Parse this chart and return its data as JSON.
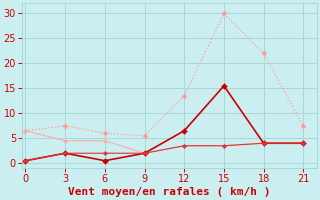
{
  "background_color": "#cbeef0",
  "grid_color": "#a8d8d8",
  "xlabel": "Vent moyen/en rafales ( km/h )",
  "xlabel_color": "#cc0000",
  "xlabel_fontsize": 8,
  "xticks": [
    0,
    3,
    6,
    9,
    12,
    15,
    18,
    21
  ],
  "yticks": [
    0,
    5,
    10,
    15,
    20,
    25,
    30
  ],
  "ylim": [
    -1,
    32
  ],
  "xlim": [
    -0.3,
    22
  ],
  "tick_color": "#cc0000",
  "tick_fontsize": 7,
  "lines": [
    {
      "label": "gust_light_dotted",
      "x": [
        0,
        3,
        6,
        9,
        12,
        15,
        18,
        21
      ],
      "y": [
        6.5,
        7.5,
        6.0,
        5.5,
        13.5,
        30.0,
        22.0,
        7.5
      ],
      "color": "#ff9999",
      "linestyle": "dotted",
      "linewidth": 0.9,
      "marker": "D",
      "markersize": 2.5
    },
    {
      "label": "mean_light_solid",
      "x": [
        0,
        3,
        6,
        9,
        12,
        15,
        18,
        21
      ],
      "y": [
        6.5,
        4.5,
        4.5,
        2.0,
        3.5,
        3.5,
        4.0,
        4.0
      ],
      "color": "#ffaaaa",
      "linestyle": "solid",
      "linewidth": 0.8,
      "marker": "D",
      "markersize": 2.2
    },
    {
      "label": "gust_dark_solid",
      "x": [
        0,
        3,
        6,
        9,
        12,
        15,
        18,
        21
      ],
      "y": [
        0.5,
        2.0,
        0.5,
        2.0,
        6.5,
        15.5,
        4.0,
        4.0
      ],
      "color": "#cc0000",
      "linestyle": "solid",
      "linewidth": 1.2,
      "marker": "D",
      "markersize": 3.0
    },
    {
      "label": "mean_dark_solid",
      "x": [
        0,
        3,
        6,
        9,
        12,
        15,
        18,
        21
      ],
      "y": [
        0.5,
        2.0,
        2.0,
        2.0,
        3.5,
        3.5,
        4.0,
        4.0
      ],
      "color": "#dd3333",
      "linestyle": "solid",
      "linewidth": 0.8,
      "marker": "D",
      "markersize": 2.2
    }
  ]
}
